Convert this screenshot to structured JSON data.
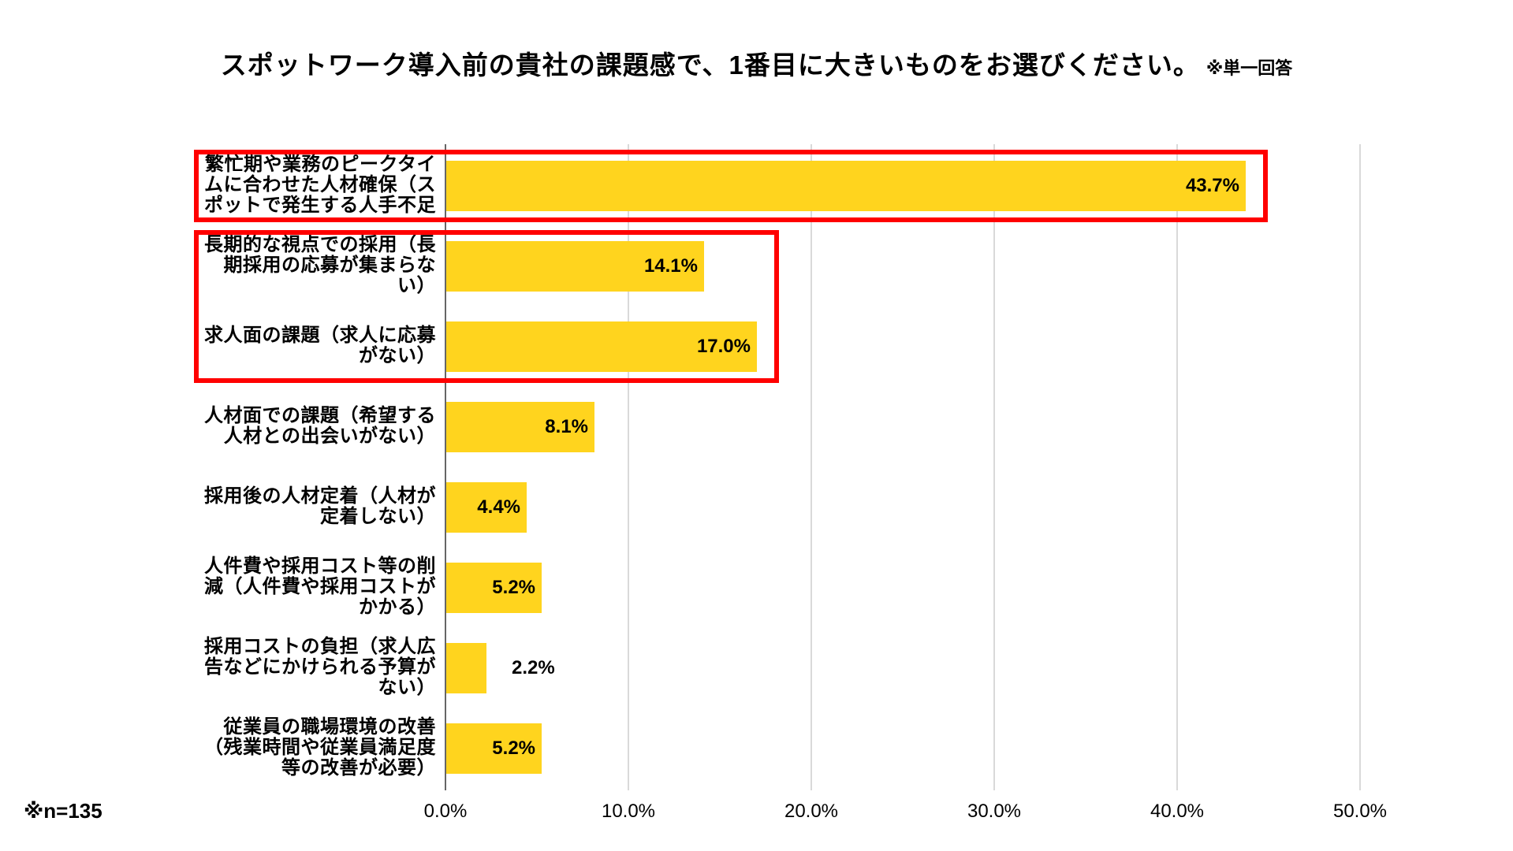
{
  "title": {
    "main": "スポットワーク導入前の貴社の課題感で、1番目に大きいものをお選びください。",
    "note": "※単一回答"
  },
  "footnote": "※n=135",
  "chart_data": {
    "type": "bar",
    "orientation": "horizontal",
    "title": "スポットワーク導入前の貴社の課題感で、1番目に大きいものをお選びください。※単一回答",
    "categories": [
      "繁忙期や業務のピークタイムに合わせた人材確保（スポットで発生する人手不足",
      "長期的な視点での採用（長期採用の応募が集まらない）",
      "求人面の課題（求人に応募がない）",
      "人材面での課題（希望する人材との出会いがない）",
      "採用後の人材定着（人材が定着しない）",
      "人件費や採用コスト等の削減（人件費や採用コストがかかる）",
      "採用コストの負担（求人広告などにかけられる予算がない）",
      "従業員の職場環境の改善（残業時間や従業員満足度等の改善が必要）"
    ],
    "categories_lines": [
      [
        "繁忙期や業務のピークタイ",
        "ムに合わせた人材確保（ス",
        "ポットで発生する人手不足"
      ],
      [
        "長期的な視点での採用（長",
        "期採用の応募が集まらな",
        "い）"
      ],
      [
        "求人面の課題（求人に応募",
        "がない）"
      ],
      [
        "人材面での課題（希望する",
        "人材との出会いがない）"
      ],
      [
        "採用後の人材定着（人材が",
        "定着しない）"
      ],
      [
        "人件費や採用コスト等の削",
        "減（人件費や採用コストが",
        "かかる）"
      ],
      [
        "採用コストの負担（求人広",
        "告などにかけられる予算が",
        "ない）"
      ],
      [
        "従業員の職場環境の改善",
        "（残業時間や従業員満足度",
        "等の改善が必要）"
      ]
    ],
    "values": [
      43.7,
      14.1,
      17.0,
      8.1,
      4.4,
      5.2,
      2.2,
      5.2
    ],
    "value_labels": [
      "43.7%",
      "14.1%",
      "17.0%",
      "8.1%",
      "4.4%",
      "5.2%",
      "2.2%",
      "5.2%"
    ],
    "xlim": [
      0,
      50
    ],
    "x_ticks": [
      "0.0%",
      "10.0%",
      "20.0%",
      "30.0%",
      "40.0%",
      "50.0%"
    ],
    "grid": true,
    "legend": false,
    "bar_color": "#FFD41E",
    "gridline_color": "#d9d9d9",
    "axis_color": "#666666",
    "highlight_color": "#ff0000",
    "highlighted_rows": [
      [
        0
      ],
      [
        1,
        2
      ]
    ]
  }
}
